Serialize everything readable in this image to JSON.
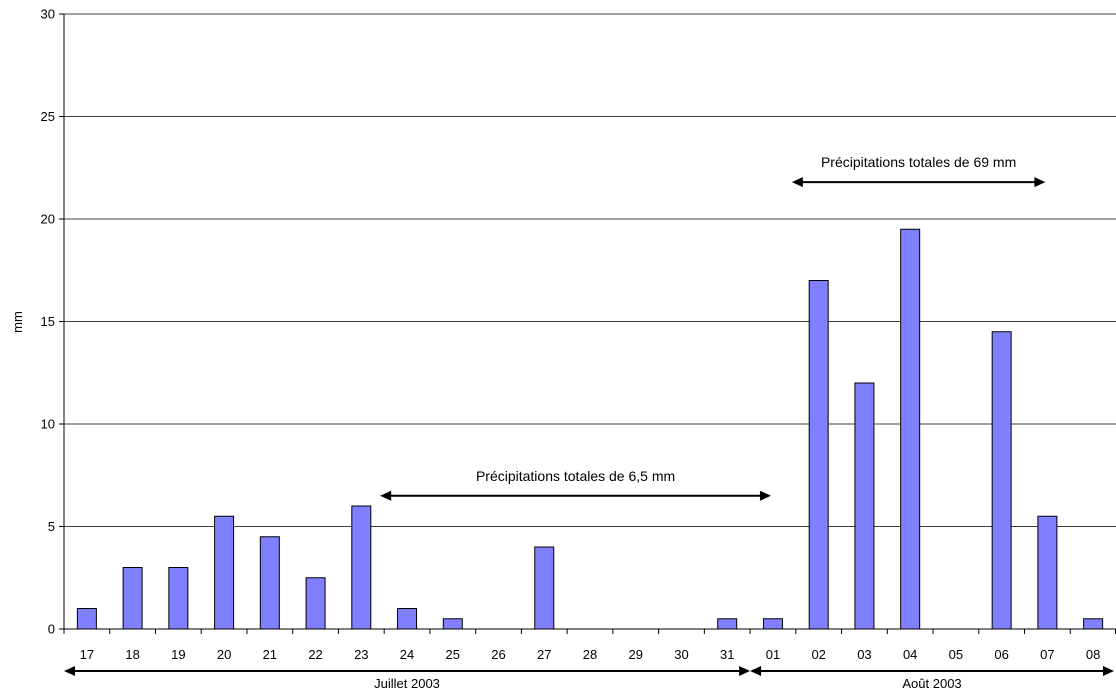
{
  "chart_data": {
    "type": "bar",
    "title": "",
    "ylabel": "mm",
    "xlabel": "",
    "ylim": [
      0,
      30
    ],
    "yticks": [
      0,
      5,
      10,
      15,
      20,
      25,
      30
    ],
    "grid": true,
    "categories": [
      "17",
      "18",
      "19",
      "20",
      "21",
      "22",
      "23",
      "24",
      "25",
      "26",
      "27",
      "28",
      "29",
      "30",
      "31",
      "01",
      "02",
      "03",
      "04",
      "05",
      "06",
      "07",
      "08"
    ],
    "values": [
      1,
      3,
      3,
      5.5,
      4.5,
      2.5,
      6,
      1,
      0.5,
      0,
      4,
      0,
      0,
      0,
      0.5,
      0.5,
      17,
      12,
      19.5,
      0,
      14.5,
      5.5,
      0.5
    ],
    "bar_color": "#8080ff",
    "months": [
      {
        "label": "Juillet 2003",
        "from": "17",
        "to": "31"
      },
      {
        "label": "Août 2003",
        "from": "01",
        "to": "08"
      }
    ],
    "annotations": [
      {
        "text": "Précipitations totales de 6,5 mm",
        "from": "24",
        "to": "01",
        "y": 6.5
      },
      {
        "text": "Précipitations totales de 69 mm",
        "from": "02",
        "to": "07",
        "y": 21.8
      }
    ]
  }
}
